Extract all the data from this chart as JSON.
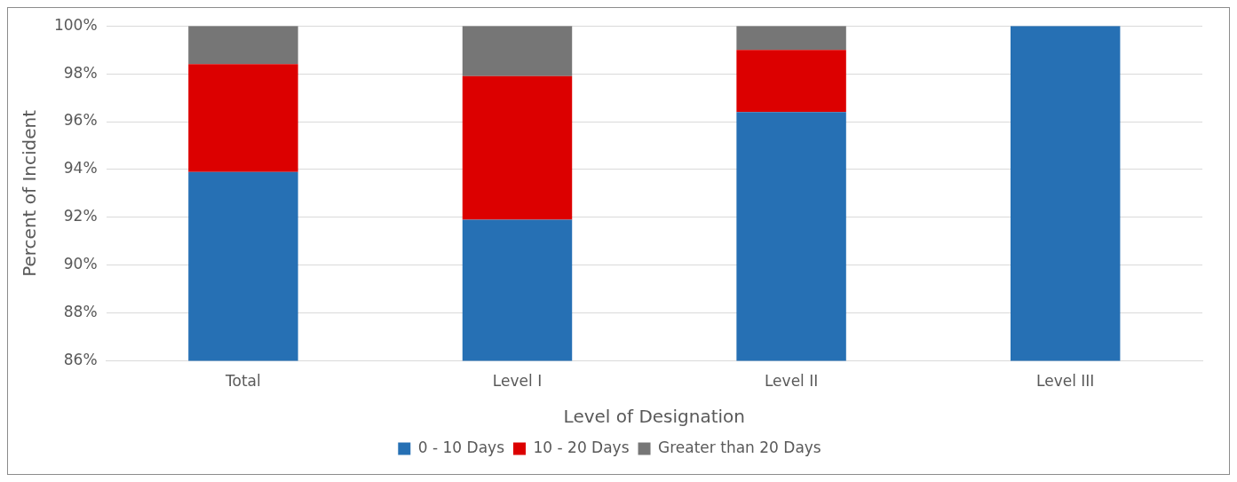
{
  "chart_data": {
    "type": "bar",
    "stacked": true,
    "xlabel": "Level of Designation",
    "ylabel": "Percent of Incident",
    "categories": [
      "Total",
      "Level I",
      "Level II",
      "Level III"
    ],
    "series": [
      {
        "name": "0 - 10 Days",
        "color": "#2670b4",
        "values": [
          93.9,
          91.9,
          96.4,
          100
        ]
      },
      {
        "name": "10 - 20 Days",
        "color": "#dc0000",
        "values": [
          4.5,
          6.0,
          2.6,
          null
        ],
        "base": [
          93.9,
          91.9,
          96.4,
          null
        ]
      },
      {
        "name": "Greater than 20 Days",
        "color": "#767676",
        "values": [
          1.6,
          2.1,
          1.0,
          null
        ],
        "base": [
          98.4,
          97.9,
          99.0,
          null
        ]
      }
    ],
    "ylim": [
      86,
      100
    ],
    "yticks": [
      {
        "value": 86,
        "label": "86%"
      },
      {
        "value": 88,
        "label": "88%"
      },
      {
        "value": 90,
        "label": "90%"
      },
      {
        "value": 92,
        "label": "92%"
      },
      {
        "value": 94,
        "label": "94%"
      },
      {
        "value": 96,
        "label": "96%"
      },
      {
        "value": 98,
        "label": "98%"
      },
      {
        "value": 100,
        "label": "100%"
      }
    ],
    "grid": "y",
    "legend": "bottom"
  }
}
